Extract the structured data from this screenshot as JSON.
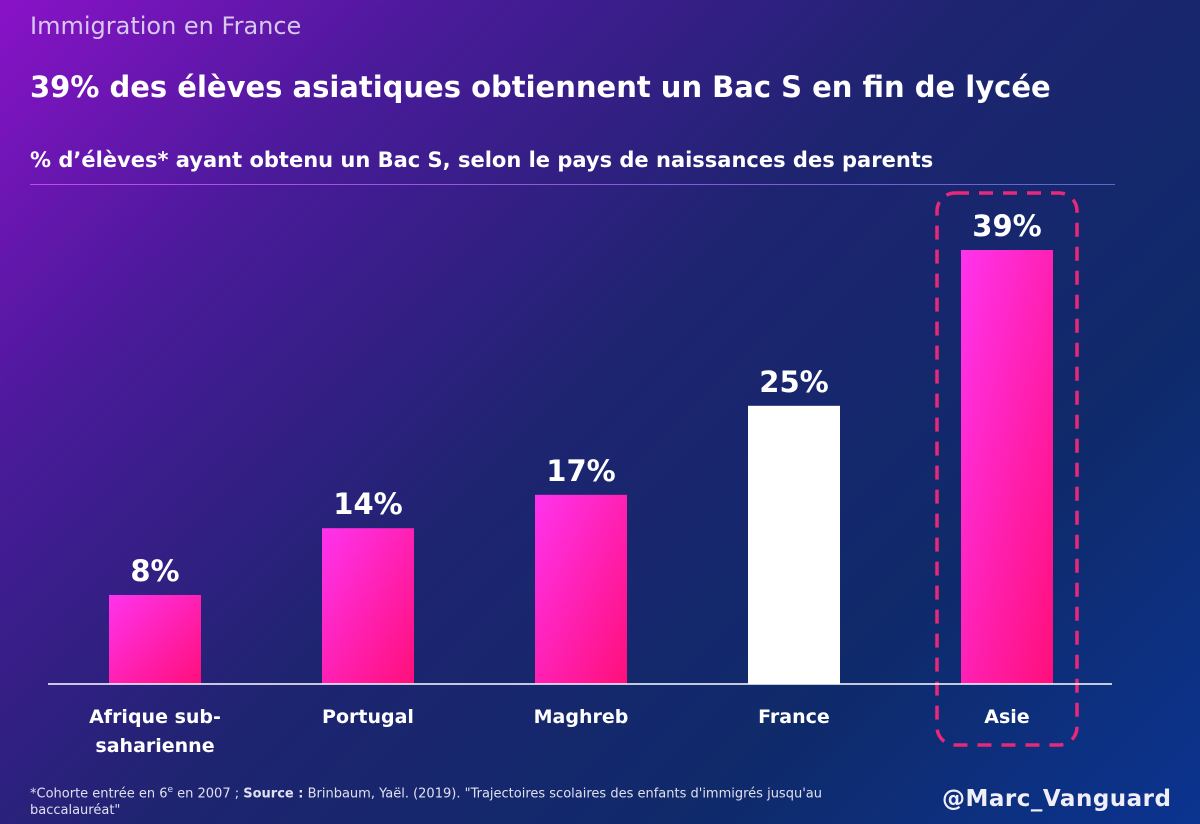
{
  "header": {
    "section": "Immigration en France",
    "headline": "39% des élèves asiatiques obtiennent un Bac S en fin de lycée",
    "subtitle": "% d’élèves* ayant obtenu un Bac S, selon le pays de naissances des parents"
  },
  "chart_data": {
    "type": "bar",
    "title": "% d’élèves* ayant obtenu un Bac S, selon le pays de naissances des parents",
    "categories": [
      [
        "Afrique sub-",
        "saharienne"
      ],
      [
        "Portugal"
      ],
      [
        "Maghreb"
      ],
      [
        "France"
      ],
      [
        "Asie"
      ]
    ],
    "values": [
      8,
      14,
      17,
      25,
      39
    ],
    "value_labels": [
      "8%",
      "14%",
      "17%",
      "25%",
      "39%"
    ],
    "highlight_index": 4,
    "reference_index": 3,
    "ylim": [
      0,
      40
    ],
    "grid": false,
    "colors": {
      "bar_top": "#ff33ee",
      "bar_bottom": "#ff0f7a",
      "reference": "#ffffff",
      "highlight_box": "#e8287a",
      "axis": "#ffffff"
    }
  },
  "footer": {
    "note_prefix": "*Cohorte entrée en 6",
    "note_sup": "e",
    "note_mid": " en 2007 ; ",
    "source_label": "Source :",
    "source_text": " Brinbaum, Yaël. (2019). \"Trajectoires scolaires des enfants d'immigrés jusqu'au baccalauréat\"",
    "handle": "@Marc_Vanguard"
  }
}
